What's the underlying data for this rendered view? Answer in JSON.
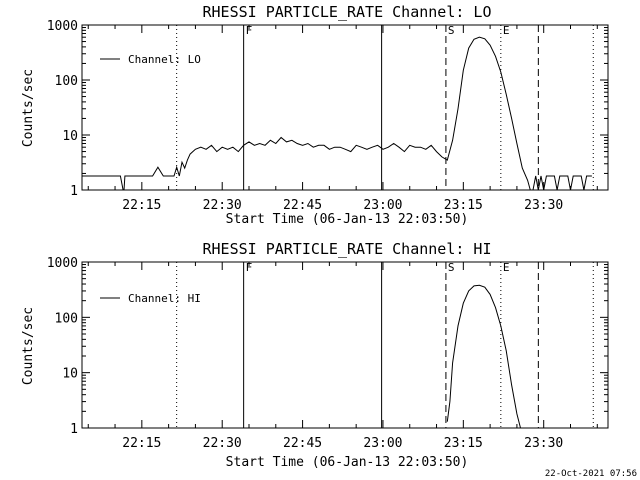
{
  "timestamp": "22-Oct-2021 07:56",
  "chart_data": [
    {
      "type": "line",
      "title": "RHESSI PARTICLE_RATE Channel: LO",
      "xlabel": "Start Time (06-Jan-13 22:03:50)",
      "ylabel": "Counts/sec",
      "yscale": "log",
      "ylim": [
        1,
        1000
      ],
      "y_ticks": [
        1,
        10,
        100,
        1000
      ],
      "y_tick_labels": [
        "1",
        "10",
        "100",
        "1000"
      ],
      "xlim": [
        "22:03:50",
        "23:42:00"
      ],
      "x_ticks": [
        "22:15",
        "22:30",
        "22:45",
        "23:00",
        "23:15",
        "23:30"
      ],
      "legend": {
        "position": "top-left",
        "label": "Channel: LO"
      },
      "vlines": [
        {
          "time": "22:21:30",
          "style": "dotted",
          "label": ""
        },
        {
          "time": "22:34:00",
          "style": "solid",
          "label": "F"
        },
        {
          "time": "22:59:45",
          "style": "solid",
          "label": ""
        },
        {
          "time": "23:11:45",
          "style": "dashed",
          "label": "S"
        },
        {
          "time": "23:22:00",
          "style": "dotted",
          "label": "E"
        },
        {
          "time": "23:29:00",
          "style": "dashed",
          "label": ""
        },
        {
          "time": "23:39:15",
          "style": "dotted",
          "label": ""
        }
      ],
      "series": [
        {
          "name": "Channel: LO",
          "x": [
            "22:03:50",
            "22:11:00",
            "22:11:30",
            "22:11:40",
            "22:11:50",
            "22:12:20",
            "22:12:30",
            "22:12:50",
            "22:14:00",
            "22:15:00",
            "22:16:00",
            "22:17:00",
            "22:18:00",
            "22:19:00",
            "22:19:30",
            "22:20:00",
            "22:21:00",
            "22:21:30",
            "22:22:00",
            "22:22:30",
            "22:23:00",
            "22:23:30",
            "22:24:00",
            "22:25:00",
            "22:26:00",
            "22:27:00",
            "22:28:00",
            "22:29:00",
            "22:30:00",
            "22:31:00",
            "22:32:00",
            "22:33:00",
            "22:34:00",
            "22:35:00",
            "22:36:00",
            "22:37:00",
            "22:38:00",
            "22:39:00",
            "22:40:00",
            "22:41:00",
            "22:42:00",
            "22:43:00",
            "22:44:00",
            "22:45:00",
            "22:46:00",
            "22:47:00",
            "22:48:00",
            "22:49:00",
            "22:50:00",
            "22:51:00",
            "22:52:00",
            "22:53:00",
            "22:54:00",
            "22:55:00",
            "22:56:00",
            "22:57:00",
            "22:58:00",
            "22:59:00",
            "23:00:00",
            "23:01:00",
            "23:02:00",
            "23:03:00",
            "23:04:00",
            "23:05:00",
            "23:06:00",
            "23:07:00",
            "23:08:00",
            "23:09:00",
            "23:10:00",
            "23:11:00",
            "23:12:00",
            "23:13:00",
            "23:14:00",
            "23:15:00",
            "23:16:00",
            "23:17:00",
            "23:18:00",
            "23:19:00",
            "23:20:00",
            "23:21:00",
            "23:22:00",
            "23:23:00",
            "23:24:00",
            "23:25:00",
            "23:26:00",
            "23:27:00",
            "23:27:30",
            "23:28:00",
            "23:28:30",
            "23:29:00",
            "23:29:30",
            "23:30:00",
            "23:30:30",
            "23:31:00",
            "23:31:30",
            "23:32:00",
            "23:32:30",
            "23:33:00",
            "23:33:30",
            "23:34:00",
            "23:34:30",
            "23:35:00",
            "23:35:30",
            "23:36:00",
            "23:36:30",
            "23:37:00",
            "23:37:30",
            "23:38:00",
            "23:38:30",
            "23:39:00"
          ],
          "y": [
            1.8,
            1.8,
            1,
            1,
            1.8,
            1.8,
            1.8,
            1.8,
            1.8,
            1.8,
            1.8,
            1.8,
            2.6,
            1.8,
            1.8,
            1.8,
            1.8,
            2.6,
            1.8,
            3.2,
            2.5,
            3.5,
            4.5,
            5.5,
            6,
            5.5,
            6.5,
            5,
            6,
            5.5,
            6,
            5,
            6.5,
            7.5,
            6.5,
            7,
            6.5,
            8,
            7,
            9,
            7.5,
            8,
            7,
            6.5,
            7,
            6,
            6.5,
            6.5,
            5.5,
            6,
            6,
            5.5,
            5,
            6.5,
            6,
            5.5,
            6,
            6.5,
            5.5,
            6,
            7,
            6,
            5,
            6.5,
            6,
            6,
            5.5,
            6.5,
            5,
            4,
            3.5,
            8,
            30,
            150,
            380,
            550,
            600,
            560,
            430,
            270,
            140,
            55,
            20,
            7,
            2.5,
            1.5,
            1,
            1,
            1.8,
            1,
            1.8,
            1,
            1.8,
            1.8,
            1.8,
            1.8,
            1,
            1.8,
            1.8,
            1.8,
            1.8,
            1,
            1.8,
            1.8,
            1.8,
            1.8,
            1,
            1.8,
            1.8,
            1.8
          ]
        }
      ]
    },
    {
      "type": "line",
      "title": "RHESSI PARTICLE_RATE Channel: HI",
      "xlabel": "Start Time (06-Jan-13 22:03:50)",
      "ylabel": "Counts/sec",
      "yscale": "log",
      "ylim": [
        1,
        1000
      ],
      "y_ticks": [
        1,
        10,
        100,
        1000
      ],
      "y_tick_labels": [
        "1",
        "10",
        "100",
        "1000"
      ],
      "xlim": [
        "22:03:50",
        "23:42:00"
      ],
      "x_ticks": [
        "22:15",
        "22:30",
        "22:45",
        "23:00",
        "23:15",
        "23:30"
      ],
      "legend": {
        "position": "top-left",
        "label": "Channel: HI"
      },
      "vlines": [
        {
          "time": "22:21:30",
          "style": "dotted",
          "label": ""
        },
        {
          "time": "22:34:00",
          "style": "solid",
          "label": "F"
        },
        {
          "time": "22:59:45",
          "style": "solid",
          "label": ""
        },
        {
          "time": "23:11:45",
          "style": "dashed",
          "label": "S"
        },
        {
          "time": "23:22:00",
          "style": "dotted",
          "label": "E"
        },
        {
          "time": "23:29:00",
          "style": "dashed",
          "label": ""
        },
        {
          "time": "23:39:15",
          "style": "dotted",
          "label": ""
        }
      ],
      "series": [
        {
          "name": "Channel: HI",
          "x": [
            "23:12:00",
            "23:12:30",
            "23:13:00",
            "23:14:00",
            "23:15:00",
            "23:16:00",
            "23:17:00",
            "23:18:00",
            "23:19:00",
            "23:20:00",
            "23:21:00",
            "23:22:00",
            "23:23:00",
            "23:24:00",
            "23:25:00",
            "23:25:40"
          ],
          "y": [
            1.3,
            3,
            15,
            70,
            180,
            300,
            370,
            380,
            350,
            260,
            150,
            70,
            25,
            6,
            1.8,
            1
          ]
        }
      ]
    }
  ]
}
